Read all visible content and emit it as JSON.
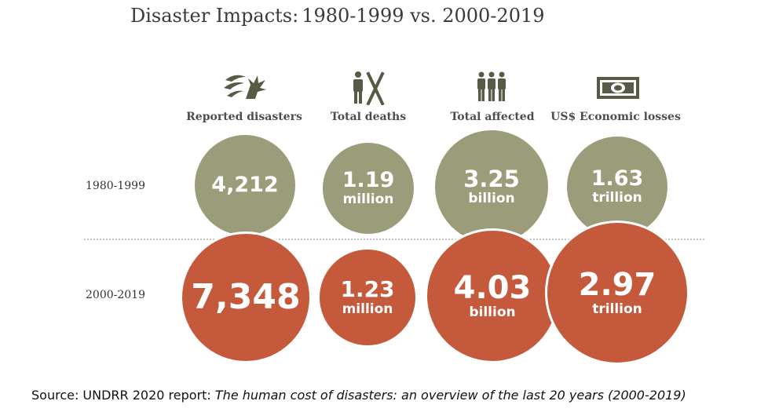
{
  "title": {
    "part1": "Disaster Impacts:",
    "part2": "1980-1999 vs. 2000-2019"
  },
  "colors": {
    "period_1980_1999": "#9b9c7a",
    "period_2000_2019": "#c45a3b",
    "icon": "#555b44"
  },
  "chart_data": {
    "type": "bubble",
    "categories": [
      "Reported disasters",
      "Total deaths",
      "Total affected",
      "US$ Economic losses"
    ],
    "category_icons": [
      "storm-icon",
      "death-icon",
      "people-icon",
      "money-icon"
    ],
    "series": [
      {
        "name": "1980-1999",
        "values": [
          4212,
          1.19,
          3.25,
          1.63
        ],
        "labels": [
          "4,212",
          "1.19",
          "3.25",
          "1.63"
        ],
        "units": [
          "",
          "million",
          "billion",
          "trillion"
        ]
      },
      {
        "name": "2000-2019",
        "values": [
          7348,
          1.23,
          4.03,
          2.97
        ],
        "labels": [
          "7,348",
          "1.23",
          "4.03",
          "2.97"
        ],
        "units": [
          "",
          "million",
          "billion",
          "trillion"
        ]
      }
    ]
  },
  "source": {
    "prefix": "Source: UNDRR 2020 report: ",
    "title": "The human cost of disasters: an overview of the last 20 years (2000-2019)"
  }
}
